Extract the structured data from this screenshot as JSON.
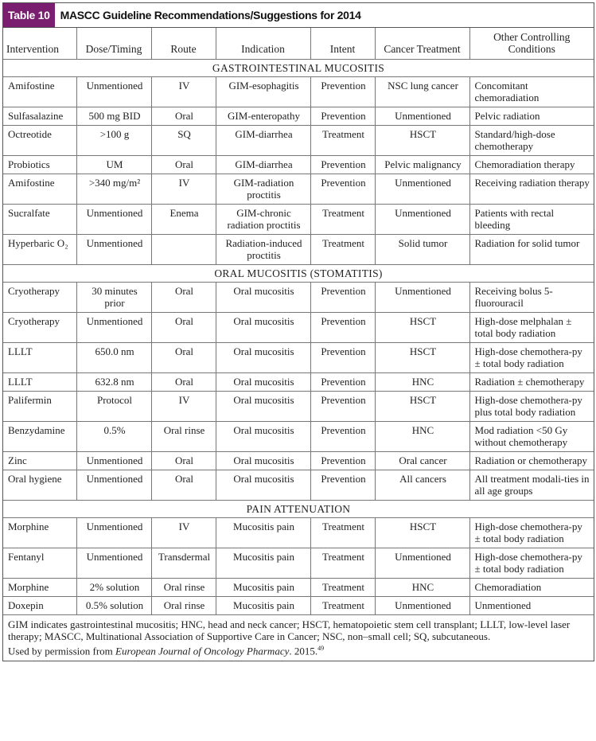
{
  "title": {
    "tag": "Table 10",
    "text": "MASCC Guideline Recommendations/Suggestions for 2014"
  },
  "columns": [
    "Intervention",
    "Dose/Timing",
    "Route",
    "Indication",
    "Intent",
    "Cancer Treatment",
    "Other Controlling Conditions"
  ],
  "sections": [
    {
      "title": "GASTROINTESTINAL MUCOSITIS",
      "rows": [
        [
          "Amifostine",
          "Unmentioned",
          "IV",
          "GIM-esophagitis",
          "Prevention",
          "NSC lung cancer",
          "Concomitant chemoradiation"
        ],
        [
          "Sulfasalazine",
          "500 mg BID",
          "Oral",
          "GIM-enteropathy",
          "Prevention",
          "Unmentioned",
          "Pelvic radiation"
        ],
        [
          "Octreotide",
          ">100 g",
          "SQ",
          "GIM-diarrhea",
          "Treatment",
          "HSCT",
          "Standard/high-dose chemotherapy"
        ],
        [
          "Probiotics",
          "UM",
          "Oral",
          "GIM-diarrhea",
          "Prevention",
          "Pelvic malignancy",
          "Chemoradiation therapy"
        ],
        [
          "Amifostine",
          ">340 mg/m²",
          "IV",
          "GIM-radiation proctitis",
          "Prevention",
          "Unmentioned",
          "Receiving radiation therapy"
        ],
        [
          "Sucralfate",
          "Unmentioned",
          "Enema",
          "GIM-chronic radiation proctitis",
          "Treatment",
          "Unmentioned",
          "Patients with rectal bleeding"
        ],
        [
          "Hyperbaric O₂",
          "Unmentioned",
          "",
          "Radiation-induced proctitis",
          "Treatment",
          "Solid tumor",
          "Radiation for solid tumor"
        ]
      ]
    },
    {
      "title": "ORAL MUCOSITIS (STOMATITIS)",
      "rows": [
        [
          "Cryotherapy",
          "30 minutes prior",
          "Oral",
          "Oral mucositis",
          "Prevention",
          "Unmentioned",
          "Receiving bolus 5-fluorouracil"
        ],
        [
          "Cryotherapy",
          "Unmentioned",
          "Oral",
          "Oral mucositis",
          "Prevention",
          "HSCT",
          "High-dose melphalan ± total body radiation"
        ],
        [
          "LLLT",
          "650.0 nm",
          "Oral",
          "Oral mucositis",
          "Prevention",
          "HSCT",
          "High-dose chemothera-py ± total body radiation"
        ],
        [
          "LLLT",
          "632.8 nm",
          "Oral",
          "Oral mucositis",
          "Prevention",
          "HNC",
          "Radiation ± chemotherapy"
        ],
        [
          "Palifermin",
          "Protocol",
          "IV",
          "Oral mucositis",
          "Prevention",
          "HSCT",
          "High-dose chemothera-py plus total body radiation"
        ],
        [
          "Benzydamine",
          "0.5%",
          "Oral rinse",
          "Oral mucositis",
          "Prevention",
          "HNC",
          "Mod radiation <50 Gy without chemotherapy"
        ],
        [
          "Zinc",
          "Unmentioned",
          "Oral",
          "Oral mucositis",
          "Prevention",
          "Oral cancer",
          "Radiation or chemotherapy"
        ],
        [
          "Oral hygiene",
          "Unmentioned",
          "Oral",
          "Oral mucositis",
          "Prevention",
          "All cancers",
          "All treatment modali-ties in all age groups"
        ]
      ]
    },
    {
      "title": "PAIN ATTENUATION",
      "rows": [
        [
          "Morphine",
          "Unmentioned",
          "IV",
          "Mucositis pain",
          "Treatment",
          "HSCT",
          "High-dose chemothera-py ± total body radiation"
        ],
        [
          "Fentanyl",
          "Unmentioned",
          "Transdermal",
          "Mucositis pain",
          "Treatment",
          "Unmentioned",
          "High-dose chemothera-py ± total body radiation"
        ],
        [
          "Morphine",
          "2% solution",
          "Oral rinse",
          "Mucositis pain",
          "Treatment",
          "HNC",
          "Chemoradiation"
        ],
        [
          "Doxepin",
          "0.5% solution",
          "Oral rinse",
          "Mucositis pain",
          "Treatment",
          "Unmentioned",
          "Unmentioned"
        ]
      ]
    }
  ],
  "footnote": {
    "abbreviations": "GIM indicates gastrointestinal mucositis; HNC, head and neck cancer; HSCT, hematopoietic stem cell transplant; LLLT, low-level laser therapy; MASCC, Multinational Association of Supportive Care in Cancer; NSC, non–small cell; SQ, subcutaneous.",
    "permission_prefix": "Used by permission from ",
    "journal": "European Journal of Oncology Pharmacy",
    "year": ". 2015.",
    "ref": "49"
  },
  "colors": {
    "tag_background": "#7a1f6f"
  }
}
